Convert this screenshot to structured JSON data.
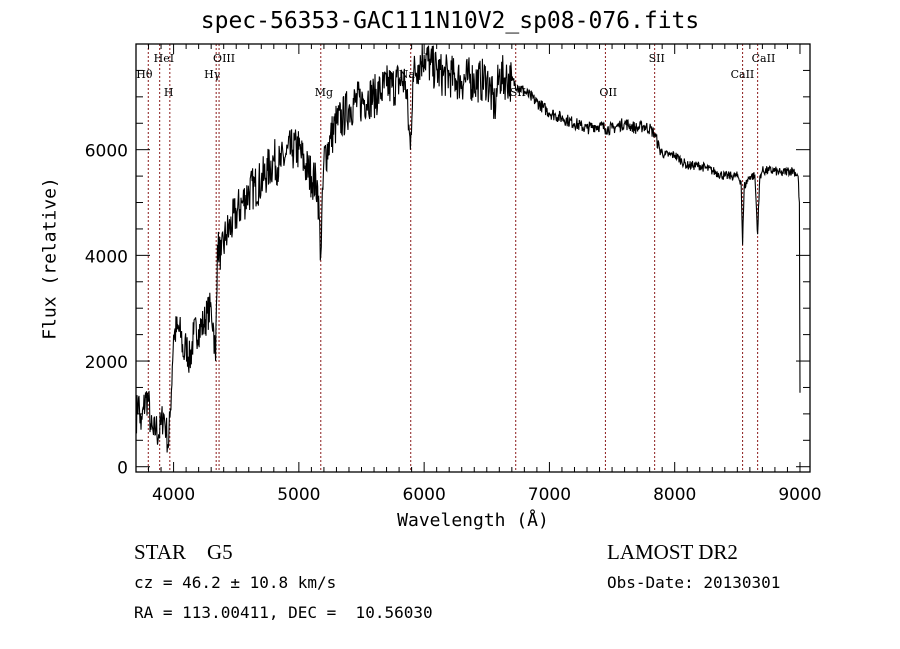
{
  "chart_data": {
    "type": "line",
    "title": "spec-56353-GAC111N10V2_sp08-076.fits",
    "xlabel": "Wavelength (Å)",
    "ylabel": "Flux (relative)",
    "xlim": [
      3700,
      9080
    ],
    "ylim": [
      -100,
      8000
    ],
    "xticks": [
      4000,
      5000,
      6000,
      7000,
      8000,
      9000
    ],
    "yticks": [
      0,
      2000,
      4000,
      6000
    ],
    "grid": false,
    "series": [
      {
        "name": "flux",
        "points": [
          [
            3700,
            900
          ],
          [
            3720,
            1300
          ],
          [
            3740,
            700
          ],
          [
            3760,
            1100
          ],
          [
            3780,
            1300
          ],
          [
            3800,
            1250
          ],
          [
            3820,
            700
          ],
          [
            3840,
            600
          ],
          [
            3860,
            750
          ],
          [
            3880,
            600
          ],
          [
            3900,
            800
          ],
          [
            3920,
            1000
          ],
          [
            3940,
            700
          ],
          [
            3960,
            400
          ],
          [
            3975,
            1100
          ],
          [
            3990,
            1900
          ],
          [
            4000,
            2500
          ],
          [
            4030,
            2600
          ],
          [
            4060,
            2500
          ],
          [
            4080,
            2100
          ],
          [
            4100,
            2300
          ],
          [
            4130,
            2000
          ],
          [
            4160,
            2500
          ],
          [
            4200,
            2600
          ],
          [
            4240,
            2700
          ],
          [
            4270,
            2900
          ],
          [
            4300,
            3000
          ],
          [
            4320,
            2600
          ],
          [
            4335,
            2000
          ],
          [
            4350,
            4200
          ],
          [
            4380,
            4000
          ],
          [
            4420,
            4400
          ],
          [
            4450,
            4500
          ],
          [
            4500,
            4800
          ],
          [
            4550,
            5000
          ],
          [
            4600,
            5200
          ],
          [
            4650,
            5300
          ],
          [
            4700,
            5400
          ],
          [
            4750,
            5600
          ],
          [
            4800,
            5800
          ],
          [
            4850,
            5700
          ],
          [
            4900,
            5900
          ],
          [
            4950,
            6000
          ],
          [
            5000,
            6000
          ],
          [
            5050,
            5700
          ],
          [
            5100,
            5500
          ],
          [
            5150,
            5300
          ],
          [
            5175,
            4000
          ],
          [
            5200,
            5800
          ],
          [
            5250,
            6200
          ],
          [
            5300,
            6500
          ],
          [
            5350,
            6600
          ],
          [
            5400,
            6800
          ],
          [
            5450,
            6900
          ],
          [
            5500,
            6900
          ],
          [
            5550,
            7000
          ],
          [
            5600,
            7000
          ],
          [
            5650,
            7100
          ],
          [
            5700,
            7200
          ],
          [
            5750,
            7200
          ],
          [
            5800,
            7300
          ],
          [
            5850,
            7300
          ],
          [
            5890,
            6000
          ],
          [
            5910,
            7400
          ],
          [
            5950,
            7600
          ],
          [
            6000,
            7800
          ],
          [
            6050,
            7600
          ],
          [
            6100,
            7500
          ],
          [
            6150,
            7400
          ],
          [
            6200,
            7400
          ],
          [
            6250,
            7350
          ],
          [
            6300,
            7300
          ],
          [
            6350,
            7350
          ],
          [
            6400,
            7300
          ],
          [
            6450,
            7300
          ],
          [
            6500,
            7350
          ],
          [
            6563,
            6800
          ],
          [
            6600,
            7400
          ],
          [
            6650,
            7350
          ],
          [
            6700,
            7300
          ],
          [
            6750,
            7200
          ],
          [
            6800,
            7100
          ],
          [
            6850,
            7000
          ],
          [
            6900,
            6900
          ],
          [
            6950,
            6800
          ],
          [
            7000,
            6700
          ],
          [
            7050,
            6650
          ],
          [
            7100,
            6600
          ],
          [
            7150,
            6550
          ],
          [
            7200,
            6500
          ],
          [
            7250,
            6450
          ],
          [
            7300,
            6400
          ],
          [
            7350,
            6450
          ],
          [
            7400,
            6450
          ],
          [
            7450,
            6400
          ],
          [
            7500,
            6400
          ],
          [
            7550,
            6450
          ],
          [
            7600,
            6500
          ],
          [
            7650,
            6450
          ],
          [
            7700,
            6400
          ],
          [
            7750,
            6450
          ],
          [
            7800,
            6400
          ],
          [
            7840,
            6300
          ],
          [
            7880,
            6000
          ],
          [
            7920,
            5900
          ],
          [
            7960,
            5900
          ],
          [
            8000,
            5900
          ],
          [
            8050,
            5800
          ],
          [
            8100,
            5700
          ],
          [
            8150,
            5700
          ],
          [
            8200,
            5700
          ],
          [
            8250,
            5650
          ],
          [
            8300,
            5600
          ],
          [
            8350,
            5550
          ],
          [
            8400,
            5500
          ],
          [
            8450,
            5500
          ],
          [
            8500,
            5500
          ],
          [
            8530,
            5400
          ],
          [
            8542,
            4200
          ],
          [
            8555,
            5300
          ],
          [
            8600,
            5500
          ],
          [
            8640,
            5500
          ],
          [
            8662,
            4400
          ],
          [
            8680,
            5500
          ],
          [
            8700,
            5600
          ],
          [
            8750,
            5600
          ],
          [
            8800,
            5600
          ],
          [
            8850,
            5550
          ],
          [
            8900,
            5600
          ],
          [
            8950,
            5600
          ],
          [
            8985,
            5500
          ],
          [
            8995,
            5000
          ],
          [
            9000,
            1400
          ]
        ]
      }
    ],
    "lines": [
      {
        "label": "Hθ",
        "wavelength": 3798,
        "row": 2
      },
      {
        "label": "HeI",
        "wavelength": 3889,
        "row": 1
      },
      {
        "label": "H",
        "wavelength": 3970,
        "row": 3
      },
      {
        "label": "Hγ",
        "wavelength": 4340,
        "row": 2
      },
      {
        "label": "OIII",
        "wavelength": 4363,
        "row": 1
      },
      {
        "label": "Mg",
        "wavelength": 5175,
        "row": 3
      },
      {
        "label": "Na",
        "wavelength": 5893,
        "row": 2
      },
      {
        "label": "SII",
        "wavelength": 6731,
        "row": 3
      },
      {
        "label": "OII",
        "wavelength": 7447,
        "row": 3
      },
      {
        "label": "SII",
        "wavelength": 7840,
        "row": 1
      },
      {
        "label": "CaII",
        "wavelength": 8542,
        "row": 2
      },
      {
        "label": "CaII",
        "wavelength": 8662,
        "row": 1
      }
    ],
    "line_color": "#8b1a1a"
  },
  "info": {
    "class": "STAR    G5",
    "cz": "cz = 46.2 ± 10.8 km/s",
    "coords": "RA = 113.00411, DEC =  10.56030",
    "survey": "LAMOST DR2",
    "obs_date": "Obs-Date: 20130301"
  }
}
